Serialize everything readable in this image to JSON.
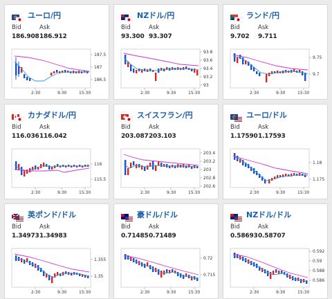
{
  "common": {
    "bid_label": "Bid",
    "ask_label": "Ask",
    "time_ticks": [
      "2:30",
      "9:30",
      "15:30"
    ]
  },
  "colors": {
    "up": "#e0201c",
    "down": "#1c4fc8",
    "line1": "#2c9bd8",
    "line2": "#d030d0",
    "title": "#1a5ea8"
  },
  "cards": [
    {
      "name": "ユーロ/円",
      "flag": "eu-jp-flag-icon",
      "bid": "186.908",
      "ask": "186.912",
      "yticks": [
        "187.5",
        "187",
        "186.5"
      ]
    },
    {
      "name": "NZドル/円",
      "flag": "nz-jp-flag-icon",
      "bid": "93.300",
      "ask": "93.307",
      "yticks": [
        "93.8",
        "93.6",
        "93.4",
        "93.2",
        "93"
      ]
    },
    {
      "name": "ランド/円",
      "flag": "za-jp-flag-icon",
      "bid": "9.702",
      "ask": "9.711",
      "yticks": [
        "9.75",
        "9.7"
      ]
    },
    {
      "name": "カナダドル/円",
      "flag": "ca-jp-flag-icon",
      "bid": "116.036",
      "ask": "116.042",
      "yticks": [
        "116",
        "115.5"
      ]
    },
    {
      "name": "スイスフラン/円",
      "flag": "ch-jp-flag-icon",
      "bid": "203.087",
      "ask": "203.103",
      "yticks": [
        "203.4",
        "203.2",
        "203",
        "202.8",
        "202.6"
      ]
    },
    {
      "name": "ユーロ/ドル",
      "flag": "eu-us-flag-icon",
      "bid": "1.17590",
      "ask": "1.17593",
      "yticks": [
        "1.18",
        "1.175"
      ]
    },
    {
      "name": "英ポンド/ドル",
      "flag": "gb-us-flag-icon",
      "bid": "1.34973",
      "ask": "1.34983",
      "yticks": [
        "1.355",
        "1.35"
      ]
    },
    {
      "name": "豪ドル/ドル",
      "flag": "au-us-flag-icon",
      "bid": "0.71485",
      "ask": "0.71489",
      "yticks": [
        "0.72",
        "0.715"
      ]
    },
    {
      "name": "NZドル/ドル",
      "flag": "nz-us-flag-icon",
      "bid": "0.58693",
      "ask": "0.58707",
      "yticks": [
        "0.592",
        "0.59",
        "0.588",
        "0.586"
      ]
    }
  ]
}
